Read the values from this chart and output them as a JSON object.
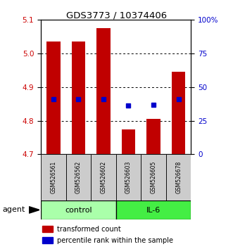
{
  "title": "GDS3773 / 10374406",
  "samples": [
    "GSM526561",
    "GSM526562",
    "GSM526602",
    "GSM526603",
    "GSM526605",
    "GSM526678"
  ],
  "bar_tops": [
    5.035,
    5.035,
    5.075,
    4.775,
    4.805,
    4.945
  ],
  "bar_bottom": 4.7,
  "bar_color": "#c00000",
  "blue_dot_values": [
    4.865,
    4.865,
    4.865,
    4.845,
    4.847,
    4.865
  ],
  "blue_dot_color": "#0000cc",
  "ylim_left": [
    4.7,
    5.1
  ],
  "ylim_right": [
    0,
    100
  ],
  "yticks_left": [
    4.7,
    4.8,
    4.9,
    5.0,
    5.1
  ],
  "yticks_right": [
    0,
    25,
    50,
    75,
    100
  ],
  "ytick_labels_right": [
    "0",
    "25",
    "50",
    "75",
    "100%"
  ],
  "groups": [
    {
      "label": "control",
      "indices": [
        0,
        1,
        2
      ],
      "color": "#aaffaa"
    },
    {
      "label": "IL-6",
      "indices": [
        3,
        4,
        5
      ],
      "color": "#44ee44"
    }
  ],
  "agent_label": "agent",
  "label_color_left": "#cc0000",
  "label_color_right": "#0000cc",
  "bar_width": 0.55,
  "legend_red_label": "transformed count",
  "legend_blue_label": "percentile rank within the sample",
  "sample_box_color": "#cccccc",
  "grid_yticks": [
    4.8,
    4.9,
    5.0
  ]
}
